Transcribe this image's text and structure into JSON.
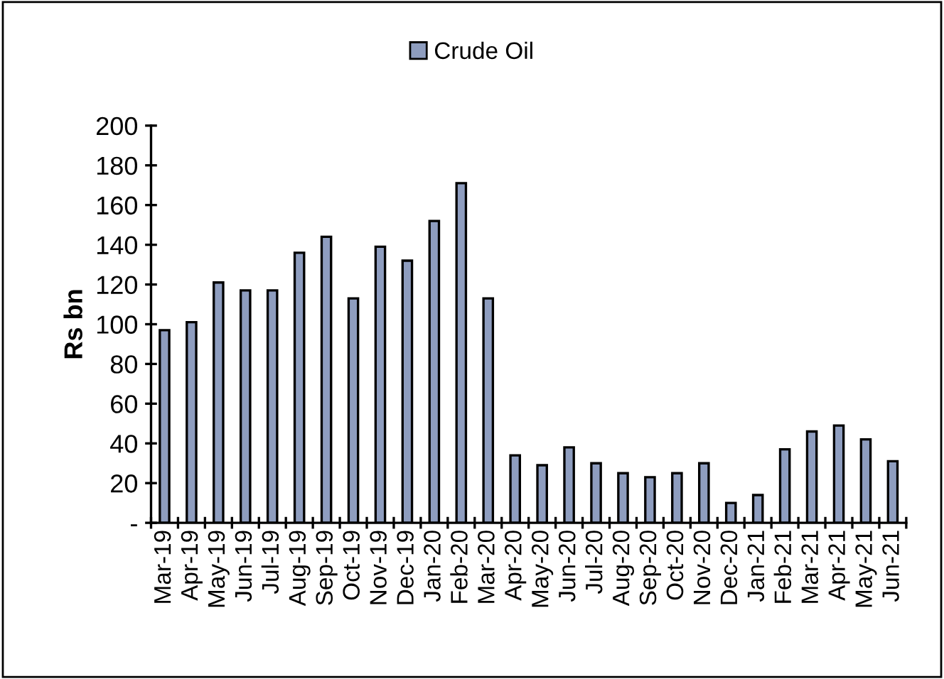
{
  "chart_data": {
    "type": "bar",
    "ylabel": "Rs bn",
    "categories": [
      "Mar-19",
      "Apr-19",
      "May-19",
      "Jun-19",
      "Jul-19",
      "Aug-19",
      "Sep-19",
      "Oct-19",
      "Nov-19",
      "Dec-19",
      "Jan-20",
      "Feb-20",
      "Mar-20",
      "Apr-20",
      "May-20",
      "Jun-20",
      "Jul-20",
      "Aug-20",
      "Sep-20",
      "Oct-20",
      "Nov-20",
      "Dec-20",
      "Jan-21",
      "Feb-21",
      "Mar-21",
      "Apr-21",
      "May-21",
      "Jun-21"
    ],
    "series": [
      {
        "name": "Crude Oil",
        "color": "#8e9dbf",
        "values": [
          97,
          101,
          121,
          117,
          117,
          136,
          144,
          113,
          139,
          132,
          152,
          171,
          113,
          34,
          29,
          38,
          30,
          25,
          23,
          25,
          30,
          10,
          14,
          37,
          46,
          49,
          42,
          31
        ]
      }
    ],
    "ylim": [
      0,
      200
    ],
    "yticks": [
      {
        "value": 0,
        "label": "-"
      },
      20,
      40,
      60,
      80,
      100,
      120,
      140,
      160,
      180,
      200
    ],
    "legend": "top",
    "grid": false
  }
}
